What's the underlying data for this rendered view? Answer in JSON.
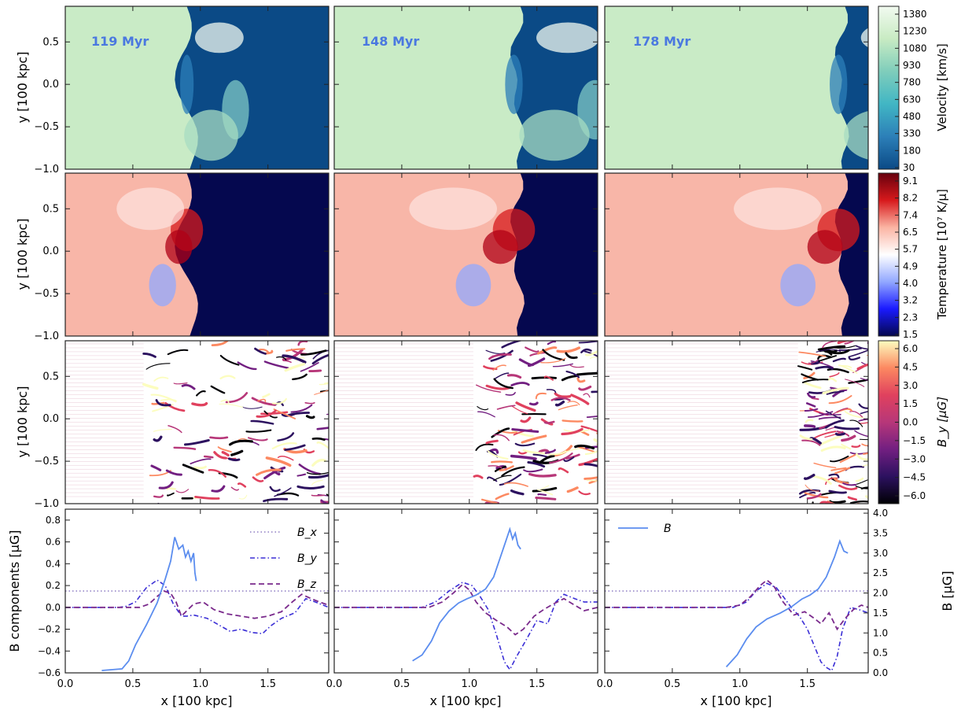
{
  "figure": {
    "times": [
      "119 Myr",
      "148 Myr",
      "178 Myr"
    ],
    "xlabel": "x [100 kpc]",
    "ylabel": "y [100 kpc]",
    "x_ticks": [
      "0.0",
      "0.5",
      "1.0",
      "1.5"
    ],
    "y_ticks_map": [
      "0.5",
      "0.0",
      "−0.5",
      "−1.0"
    ],
    "shock_front_x": [
      0.93,
      1.38,
      1.78
    ],
    "colors": {
      "time_label": "#4a78e0",
      "B": "#5b8def",
      "Bx": "#8e7cc3",
      "By": "#3b2fd6",
      "Bz": "#7a2a8c",
      "field_low": "#0b4a86",
      "temp_low": "#05084f"
    }
  },
  "colorbars": {
    "velocity": {
      "label": "Velocity [km/s]",
      "ticks": [
        "1380",
        "1230",
        "1080",
        "930",
        "780",
        "630",
        "480",
        "330",
        "180",
        "30"
      ],
      "colors": [
        "#f2faf0",
        "#c8ebc3",
        "#7fcdbb",
        "#41b6c4",
        "#2c7fb8",
        "#0b4a86"
      ]
    },
    "temperature": {
      "label": "Temperature [10⁷ K/μ]",
      "ticks": [
        "9.1",
        "8.2",
        "7.4",
        "6.5",
        "5.7",
        "4.9",
        "4.0",
        "3.2",
        "2.3",
        "1.5"
      ],
      "colors": [
        "#67000d",
        "#d7191c",
        "#fbb4a3",
        "#ffffff",
        "#92a8ff",
        "#1a1aff",
        "#05084f"
      ]
    },
    "By": {
      "label": "B_y [μG]",
      "ticks": [
        "6.0",
        "4.5",
        "3.0",
        "1.5",
        "0.0",
        "−1.5",
        "−3.0",
        "−4.5",
        "−6.0"
      ],
      "colors": [
        "#fcfdbf",
        "#fc8961",
        "#e0415e",
        "#b73779",
        "#721f81",
        "#2c115f",
        "#000004"
      ]
    }
  },
  "chart_data": {
    "type": "line",
    "panels": [
      "119 Myr",
      "148 Myr",
      "178 Myr"
    ],
    "xlabel": "x [100 kpc]",
    "ylabel_left": "B components [μG]",
    "ylabel_right": "B [μG]",
    "xlim": [
      0.0,
      1.95
    ],
    "ylim_left": [
      -0.6,
      0.9
    ],
    "ylim_right": [
      0.0,
      4.1
    ],
    "y_ticks_left": [
      "0.8",
      "0.6",
      "0.4",
      "0.2",
      "0.0",
      "−0.2",
      "−0.4",
      "−0.6"
    ],
    "y_ticks_right": [
      "4.0",
      "3.5",
      "3.0",
      "2.5",
      "2.0",
      "1.5",
      "1.0",
      "0.5",
      "0.0"
    ],
    "legend": [
      "B_x",
      "B_y",
      "B_z",
      "B"
    ],
    "series": [
      {
        "name": "B_x",
        "axis": "left",
        "style": "dotted",
        "panels": [
          {
            "x": [
              0.0,
              1.95
            ],
            "y": [
              0.15,
              0.15
            ]
          },
          {
            "x": [
              0.0,
              1.95
            ],
            "y": [
              0.15,
              0.15
            ]
          },
          {
            "x": [
              0.0,
              1.95
            ],
            "y": [
              0.15,
              0.15
            ]
          }
        ]
      },
      {
        "name": "B_y",
        "axis": "left",
        "style": "dashdot",
        "panels": [
          {
            "x": [
              0.0,
              0.4,
              0.45,
              0.52,
              0.6,
              0.68,
              0.74,
              0.8,
              0.86,
              0.9,
              0.95,
              1.05,
              1.15,
              1.22,
              1.3,
              1.38,
              1.46,
              1.52,
              1.6,
              1.7,
              1.78,
              1.85,
              1.95
            ],
            "y": [
              0.0,
              0.0,
              0.01,
              0.05,
              0.18,
              0.25,
              0.2,
              0.03,
              -0.08,
              -0.08,
              -0.07,
              -0.1,
              -0.17,
              -0.22,
              -0.2,
              -0.23,
              -0.24,
              -0.17,
              -0.1,
              -0.05,
              0.08,
              0.05,
              0.0
            ]
          },
          {
            "x": [
              0.0,
              0.65,
              0.75,
              0.85,
              0.95,
              1.02,
              1.08,
              1.14,
              1.2,
              1.26,
              1.3,
              1.35,
              1.42,
              1.5,
              1.58,
              1.64,
              1.7,
              1.78,
              1.85,
              1.95
            ],
            "y": [
              0.0,
              0.0,
              0.05,
              0.15,
              0.23,
              0.2,
              0.1,
              -0.02,
              -0.25,
              -0.5,
              -0.57,
              -0.45,
              -0.3,
              -0.12,
              -0.15,
              0.05,
              0.12,
              0.08,
              0.05,
              0.05
            ]
          },
          {
            "x": [
              0.0,
              0.95,
              1.05,
              1.12,
              1.2,
              1.27,
              1.32,
              1.38,
              1.44,
              1.5,
              1.56,
              1.6,
              1.64,
              1.68,
              1.72,
              1.76,
              1.82,
              1.88,
              1.95
            ],
            "y": [
              0.0,
              0.0,
              0.05,
              0.15,
              0.22,
              0.18,
              0.1,
              0.0,
              -0.08,
              -0.2,
              -0.38,
              -0.5,
              -0.55,
              -0.58,
              -0.45,
              -0.2,
              0.0,
              -0.02,
              -0.05
            ]
          }
        ]
      },
      {
        "name": "B_z",
        "axis": "left",
        "style": "dashed",
        "panels": [
          {
            "x": [
              0.0,
              0.55,
              0.62,
              0.68,
              0.73,
              0.78,
              0.82,
              0.86,
              0.9,
              0.95,
              1.02,
              1.1,
              1.2,
              1.3,
              1.4,
              1.5,
              1.6,
              1.68,
              1.75,
              1.82,
              1.88,
              1.95
            ],
            "y": [
              0.0,
              0.0,
              0.03,
              0.1,
              0.15,
              0.13,
              0.05,
              -0.08,
              -0.03,
              0.03,
              0.05,
              -0.02,
              -0.06,
              -0.08,
              -0.1,
              -0.08,
              -0.04,
              0.05,
              0.12,
              0.08,
              0.05,
              0.02
            ]
          },
          {
            "x": [
              0.0,
              0.7,
              0.8,
              0.88,
              0.95,
              1.0,
              1.05,
              1.12,
              1.2,
              1.28,
              1.34,
              1.4,
              1.48,
              1.55,
              1.62,
              1.7,
              1.78,
              1.85,
              1.95
            ],
            "y": [
              0.0,
              0.0,
              0.05,
              0.13,
              0.21,
              0.16,
              0.05,
              -0.05,
              -0.12,
              -0.18,
              -0.25,
              -0.2,
              -0.08,
              -0.02,
              0.03,
              0.08,
              0.02,
              -0.03,
              0.0
            ]
          },
          {
            "x": [
              0.0,
              0.9,
              1.0,
              1.08,
              1.15,
              1.2,
              1.25,
              1.32,
              1.4,
              1.48,
              1.55,
              1.6,
              1.66,
              1.72,
              1.78,
              1.84,
              1.9,
              1.95
            ],
            "y": [
              0.0,
              0.0,
              0.02,
              0.1,
              0.2,
              0.25,
              0.2,
              0.05,
              -0.07,
              -0.04,
              -0.1,
              -0.15,
              -0.05,
              -0.2,
              -0.1,
              -0.02,
              0.02,
              0.0
            ]
          }
        ]
      },
      {
        "name": "B",
        "axis": "right",
        "style": "solid",
        "panels": [
          {
            "x": [
              0.27,
              0.35,
              0.42,
              0.47,
              0.52,
              0.6,
              0.68,
              0.74,
              0.78,
              0.81,
              0.84,
              0.87,
              0.89,
              0.91,
              0.93,
              0.95,
              0.96,
              0.97
            ],
            "y": [
              0.06,
              0.08,
              0.1,
              0.3,
              0.7,
              1.2,
              1.75,
              2.35,
              2.8,
              3.4,
              3.1,
              3.2,
              2.9,
              3.05,
              2.8,
              3.0,
              2.5,
              2.3
            ]
          },
          {
            "x": [
              0.58,
              0.65,
              0.72,
              0.78,
              0.85,
              0.92,
              0.98,
              1.05,
              1.12,
              1.18,
              1.23,
              1.27,
              1.3,
              1.32,
              1.34,
              1.36,
              1.38
            ],
            "y": [
              0.3,
              0.45,
              0.8,
              1.25,
              1.55,
              1.75,
              1.85,
              1.95,
              2.1,
              2.4,
              2.9,
              3.3,
              3.6,
              3.35,
              3.5,
              3.2,
              3.1
            ]
          },
          {
            "x": [
              0.9,
              0.98,
              1.05,
              1.12,
              1.2,
              1.3,
              1.38,
              1.46,
              1.52,
              1.58,
              1.64,
              1.7,
              1.74,
              1.77,
              1.8
            ],
            "y": [
              0.15,
              0.45,
              0.85,
              1.15,
              1.35,
              1.5,
              1.65,
              1.85,
              1.95,
              2.1,
              2.4,
              2.9,
              3.3,
              3.05,
              3.0
            ]
          }
        ]
      }
    ]
  }
}
